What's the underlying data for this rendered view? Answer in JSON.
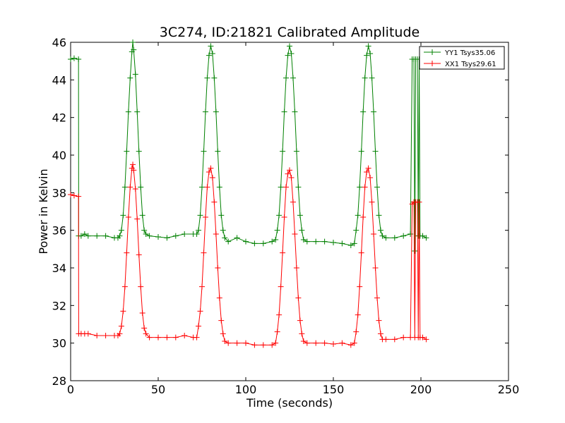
{
  "chart_data": {
    "type": "line",
    "title": "3C274, ID:21821 Calibrated Amplitude",
    "xlabel": "Time (seconds)",
    "ylabel": "Power in Kelvin",
    "xlim": [
      0,
      250
    ],
    "ylim": [
      28,
      46
    ],
    "xticks": [
      0,
      50,
      100,
      150,
      200,
      250
    ],
    "yticks": [
      28,
      30,
      32,
      34,
      36,
      38,
      40,
      42,
      44,
      46
    ],
    "grid": false,
    "legend_position": "top-right",
    "marker": "+",
    "series": [
      {
        "name": "YY1 Tsys35.06",
        "color": "#008000",
        "points": [
          [
            0,
            45.1
          ],
          [
            2,
            45.15
          ],
          [
            4.5,
            45.1
          ],
          [
            4.6,
            35.7
          ],
          [
            6,
            35.7
          ],
          [
            8,
            35.8
          ],
          [
            10,
            35.7
          ],
          [
            15,
            35.7
          ],
          [
            20,
            35.7
          ],
          [
            25,
            35.6
          ],
          [
            27,
            35.6
          ],
          [
            28,
            35.7
          ],
          [
            29,
            36.0
          ],
          [
            30,
            36.8
          ],
          [
            31,
            38.3
          ],
          [
            32,
            40.2
          ],
          [
            33,
            42.3
          ],
          [
            34,
            44.1
          ],
          [
            35,
            45.5
          ],
          [
            35.5,
            46.0
          ],
          [
            36,
            45.6
          ],
          [
            37,
            44.3
          ],
          [
            38,
            42.3
          ],
          [
            39,
            40.2
          ],
          [
            40,
            38.3
          ],
          [
            41,
            36.8
          ],
          [
            42,
            36.0
          ],
          [
            43,
            35.8
          ],
          [
            45,
            35.7
          ],
          [
            50,
            35.65
          ],
          [
            55,
            35.6
          ],
          [
            60,
            35.7
          ],
          [
            65,
            35.8
          ],
          [
            70,
            35.8
          ],
          [
            72,
            35.8
          ],
          [
            73,
            36.0
          ],
          [
            74,
            36.8
          ],
          [
            75,
            38.3
          ],
          [
            76,
            40.2
          ],
          [
            77,
            42.3
          ],
          [
            78,
            44.1
          ],
          [
            79,
            45.3
          ],
          [
            80,
            45.8
          ],
          [
            81,
            45.4
          ],
          [
            82,
            44.1
          ],
          [
            83,
            42.3
          ],
          [
            84,
            40.2
          ],
          [
            85,
            38.3
          ],
          [
            86,
            36.8
          ],
          [
            87,
            36.0
          ],
          [
            88,
            35.6
          ],
          [
            90,
            35.4
          ],
          [
            95,
            35.6
          ],
          [
            100,
            35.4
          ],
          [
            105,
            35.3
          ],
          [
            110,
            35.3
          ],
          [
            115,
            35.4
          ],
          [
            117,
            35.5
          ],
          [
            118,
            36.0
          ],
          [
            119,
            36.8
          ],
          [
            120,
            38.3
          ],
          [
            121,
            40.2
          ],
          [
            122,
            42.3
          ],
          [
            123,
            44.1
          ],
          [
            124,
            45.3
          ],
          [
            125,
            45.8
          ],
          [
            126,
            45.4
          ],
          [
            127,
            44.1
          ],
          [
            128,
            42.3
          ],
          [
            129,
            40.2
          ],
          [
            130,
            38.3
          ],
          [
            131,
            36.8
          ],
          [
            132,
            36.0
          ],
          [
            133,
            35.5
          ],
          [
            135,
            35.4
          ],
          [
            140,
            35.4
          ],
          [
            145,
            35.4
          ],
          [
            150,
            35.35
          ],
          [
            155,
            35.3
          ],
          [
            160,
            35.2
          ],
          [
            162,
            35.3
          ],
          [
            163,
            36.0
          ],
          [
            164,
            36.8
          ],
          [
            165,
            38.3
          ],
          [
            166,
            40.2
          ],
          [
            167,
            42.3
          ],
          [
            168,
            44.1
          ],
          [
            169,
            45.3
          ],
          [
            170,
            45.8
          ],
          [
            171,
            45.4
          ],
          [
            172,
            44.1
          ],
          [
            173,
            42.3
          ],
          [
            174,
            40.2
          ],
          [
            175,
            38.3
          ],
          [
            176,
            36.8
          ],
          [
            177,
            36.0
          ],
          [
            178,
            35.7
          ],
          [
            180,
            35.6
          ],
          [
            185,
            35.6
          ],
          [
            190,
            35.7
          ],
          [
            194,
            35.8
          ],
          [
            195,
            45.1
          ],
          [
            196,
            45.1
          ],
          [
            196.5,
            34.9
          ],
          [
            197,
            45.1
          ],
          [
            198,
            45.1
          ],
          [
            198.5,
            35.7
          ],
          [
            199,
            45.1
          ],
          [
            199.5,
            35.7
          ],
          [
            201,
            35.7
          ],
          [
            203,
            35.6
          ]
        ]
      },
      {
        "name": "XX1 Tsys29.61",
        "color": "#ff0000",
        "points": [
          [
            0,
            37.9
          ],
          [
            2,
            37.85
          ],
          [
            4.5,
            37.8
          ],
          [
            4.6,
            30.5
          ],
          [
            6,
            30.5
          ],
          [
            8,
            30.5
          ],
          [
            10,
            30.5
          ],
          [
            15,
            30.4
          ],
          [
            20,
            30.4
          ],
          [
            25,
            30.4
          ],
          [
            27,
            30.4
          ],
          [
            28,
            30.5
          ],
          [
            29,
            30.9
          ],
          [
            30,
            31.7
          ],
          [
            31,
            33.0
          ],
          [
            32,
            34.8
          ],
          [
            33,
            36.7
          ],
          [
            34,
            38.3
          ],
          [
            35,
            39.3
          ],
          [
            35.5,
            39.5
          ],
          [
            36,
            39.2
          ],
          [
            37,
            38.2
          ],
          [
            38,
            36.6
          ],
          [
            39,
            34.7
          ],
          [
            40,
            33.0
          ],
          [
            41,
            31.6
          ],
          [
            42,
            30.8
          ],
          [
            43,
            30.5
          ],
          [
            45,
            30.3
          ],
          [
            50,
            30.3
          ],
          [
            55,
            30.3
          ],
          [
            60,
            30.3
          ],
          [
            65,
            30.4
          ],
          [
            70,
            30.3
          ],
          [
            72,
            30.3
          ],
          [
            73,
            30.9
          ],
          [
            74,
            31.7
          ],
          [
            75,
            33.0
          ],
          [
            76,
            34.8
          ],
          [
            77,
            36.7
          ],
          [
            78,
            38.3
          ],
          [
            79,
            39.1
          ],
          [
            80,
            39.3
          ],
          [
            81,
            38.8
          ],
          [
            82,
            37.5
          ],
          [
            83,
            35.8
          ],
          [
            84,
            34.0
          ],
          [
            85,
            32.4
          ],
          [
            86,
            31.2
          ],
          [
            87,
            30.5
          ],
          [
            88,
            30.1
          ],
          [
            90,
            30.0
          ],
          [
            95,
            30.0
          ],
          [
            100,
            30.0
          ],
          [
            105,
            29.9
          ],
          [
            110,
            29.9
          ],
          [
            115,
            29.9
          ],
          [
            117,
            30.0
          ],
          [
            118,
            30.6
          ],
          [
            119,
            31.5
          ],
          [
            120,
            33.0
          ],
          [
            121,
            34.8
          ],
          [
            122,
            36.7
          ],
          [
            123,
            38.3
          ],
          [
            124,
            39.0
          ],
          [
            125,
            39.2
          ],
          [
            126,
            38.8
          ],
          [
            127,
            37.5
          ],
          [
            128,
            35.8
          ],
          [
            129,
            34.0
          ],
          [
            130,
            32.4
          ],
          [
            131,
            31.2
          ],
          [
            132,
            30.5
          ],
          [
            133,
            30.1
          ],
          [
            135,
            30.0
          ],
          [
            140,
            30.0
          ],
          [
            145,
            30.0
          ],
          [
            150,
            29.95
          ],
          [
            155,
            30.0
          ],
          [
            160,
            29.9
          ],
          [
            162,
            30.0
          ],
          [
            163,
            30.6
          ],
          [
            164,
            31.5
          ],
          [
            165,
            33.0
          ],
          [
            166,
            34.8
          ],
          [
            167,
            36.7
          ],
          [
            168,
            38.3
          ],
          [
            169,
            39.1
          ],
          [
            170,
            39.3
          ],
          [
            171,
            38.8
          ],
          [
            172,
            37.5
          ],
          [
            173,
            35.8
          ],
          [
            174,
            34.0
          ],
          [
            175,
            32.4
          ],
          [
            176,
            31.2
          ],
          [
            177,
            30.5
          ],
          [
            178,
            30.2
          ],
          [
            180,
            30.2
          ],
          [
            185,
            30.2
          ],
          [
            190,
            30.3
          ],
          [
            194,
            30.3
          ],
          [
            195,
            37.4
          ],
          [
            196,
            37.5
          ],
          [
            196.5,
            30.3
          ],
          [
            197,
            37.5
          ],
          [
            198,
            37.5
          ],
          [
            198.5,
            30.3
          ],
          [
            199,
            37.5
          ],
          [
            199.5,
            30.3
          ],
          [
            201,
            30.3
          ],
          [
            203,
            30.2
          ]
        ]
      }
    ]
  }
}
